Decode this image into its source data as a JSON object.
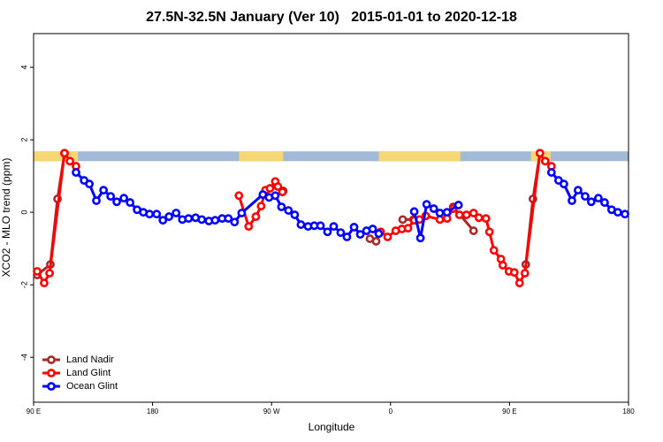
{
  "chart_data": {
    "type": "line",
    "title": "27.5N-32.5N January (Ver 10)   2015-01-01 to 2020-12-18",
    "x_label": "Longitude",
    "y_label": "XCO2 - MLO trend (ppm)",
    "xlim": [
      90,
      540
    ],
    "xticks": [
      {
        "value": 90,
        "label": "90 E"
      },
      180,
      {
        "value": 270,
        "label": "90 W"
      },
      {
        "value": 360,
        "label": "0"
      },
      {
        "value": 450,
        "label": "90 E"
      },
      {
        "value": 540,
        "label": "180"
      }
    ],
    "ylim": [
      -5.24,
      4.93
    ],
    "yticks": [
      -4,
      -2,
      0,
      2,
      4
    ],
    "legend": "bottom-left",
    "surface_strip": {
      "ylim": [
        1.41,
        1.68
      ],
      "land": [
        [
          90,
          123.5
        ],
        [
          245.4,
          278.8
        ],
        [
          351.2,
          412.8
        ],
        [
          466.3,
          481.1
        ]
      ],
      "land_color": "#f7d774",
      "ocean_color": "#a2b9d8"
    },
    "series": [
      {
        "name": "Land Nadir",
        "color": "#a52a2a",
        "x": [
          92.7,
          102.7,
          108.1,
          113.4,
          278.8,
          344.4,
          349.1,
          369.2,
          377.3,
          407.4,
          422.8,
          462.3,
          467.7,
          473.0
        ],
        "values": [
          -1.73,
          -1.44,
          0.37,
          1.63,
          0.59,
          -0.73,
          -0.8,
          -0.2,
          -0.2,
          0.15,
          -0.51,
          -1.44,
          0.37,
          1.63
        ]
      },
      {
        "name": "Land Glint",
        "color": "#ff0000",
        "x": [
          92.7,
          98.0,
          102.1,
          113.4,
          117.5,
          122.1,
          245.3,
          252.7,
          258.1,
          262.1,
          265.4,
          268.8,
          272.8,
          274.8,
          278.2,
          352.5,
          357.8,
          363.9,
          368.6,
          373.2,
          377.9,
          381.9,
          386.6,
          397.3,
          402.7,
          407.4,
          412.1,
          417.4,
          422.8,
          426.8,
          432.2,
          434.8,
          438.2,
          443.5,
          444.9,
          449.6,
          453.6,
          457.6,
          461.6,
          473.0,
          477.0,
          481.7
        ],
        "values": [
          -1.63,
          -1.95,
          -1.68,
          1.63,
          1.41,
          1.27,
          0.46,
          -0.39,
          -0.12,
          0.17,
          0.61,
          0.66,
          0.85,
          0.71,
          0.56,
          -0.54,
          -0.68,
          -0.51,
          -0.46,
          -0.44,
          -0.22,
          -0.2,
          -0.1,
          -0.2,
          -0.17,
          0.1,
          -0.07,
          -0.07,
          -0.02,
          -0.15,
          -0.17,
          -0.54,
          -1.05,
          -1.29,
          -1.46,
          -1.63,
          -1.66,
          -1.95,
          -1.68,
          1.63,
          1.41,
          1.27
        ]
      },
      {
        "name": "Ocean Glint",
        "color": "#0000ff",
        "x": [
          122.1,
          128.2,
          132.2,
          137.5,
          142.9,
          148.3,
          152.9,
          158.3,
          163.0,
          168.3,
          173.0,
          177.7,
          183.1,
          187.8,
          192.4,
          197.8,
          202.5,
          207.2,
          212.5,
          217.2,
          222.6,
          227.3,
          232.6,
          237.3,
          242.0,
          247.4,
          263.4,
          268.1,
          272.8,
          277.5,
          282.8,
          287.5,
          292.2,
          297.6,
          302.3,
          307.0,
          312.3,
          317.0,
          322.3,
          327.0,
          332.4,
          337.1,
          341.8,
          346.5,
          351.1,
          377.9,
          382.6,
          387.3,
          392.7,
          397.3,
          402.7,
          411.4,
          481.7,
          487.1,
          491.1,
          497.2,
          501.8,
          507.2,
          511.8,
          517.2,
          521.9,
          527.2,
          531.9,
          537.3
        ],
        "values": [
          1.1,
          0.88,
          0.78,
          0.32,
          0.61,
          0.44,
          0.29,
          0.39,
          0.27,
          0.07,
          0.0,
          -0.05,
          -0.05,
          -0.22,
          -0.12,
          -0.02,
          -0.2,
          -0.17,
          -0.15,
          -0.2,
          -0.24,
          -0.22,
          -0.17,
          -0.17,
          -0.27,
          -0.02,
          0.49,
          0.41,
          0.46,
          0.15,
          0.05,
          -0.07,
          -0.34,
          -0.39,
          -0.37,
          -0.37,
          -0.54,
          -0.39,
          -0.56,
          -0.68,
          -0.41,
          -0.61,
          -0.51,
          -0.46,
          -0.59,
          0.02,
          -0.71,
          0.22,
          0.1,
          -0.02,
          0.0,
          0.2,
          1.1,
          0.88,
          0.78,
          0.32,
          0.61,
          0.44,
          0.29,
          0.39,
          0.27,
          0.07,
          0.0,
          -0.05
        ]
      }
    ]
  }
}
